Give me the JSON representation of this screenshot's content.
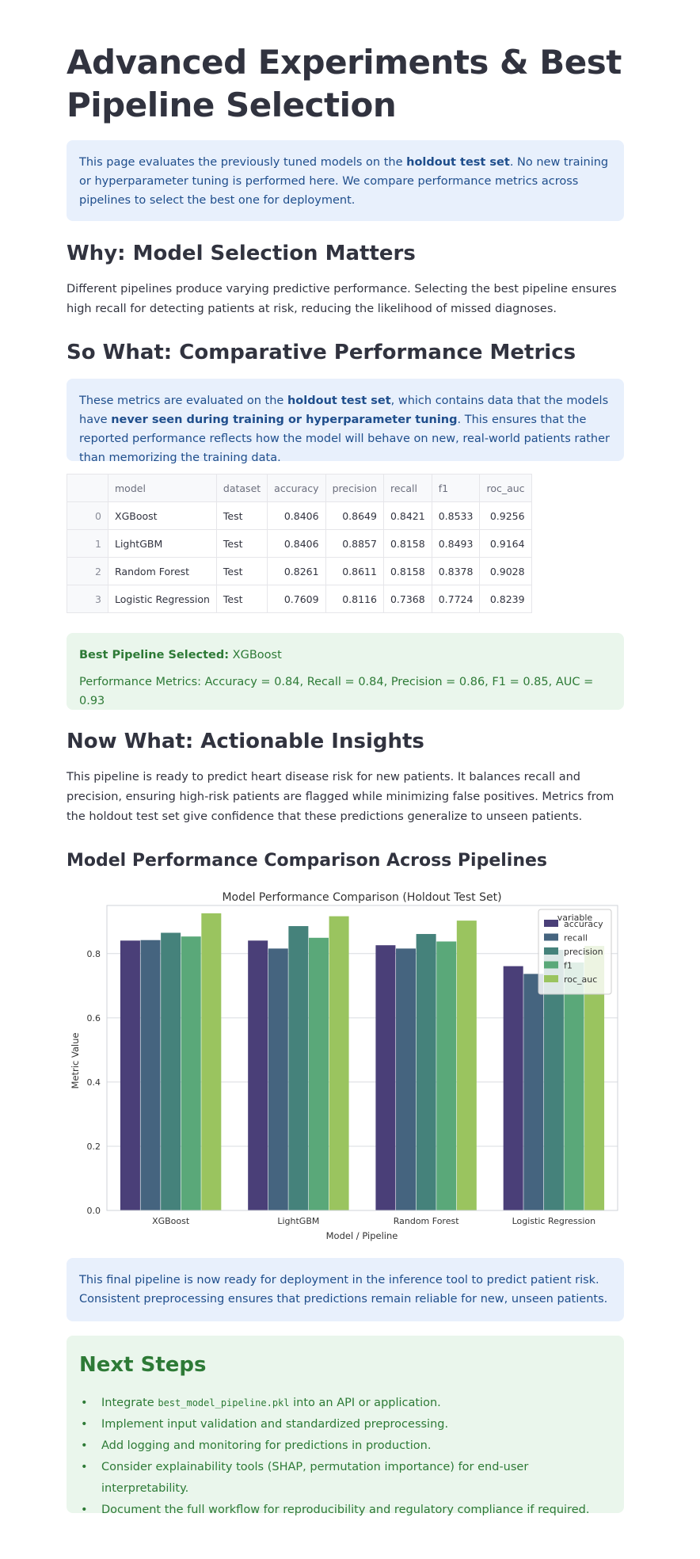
{
  "page": {
    "title": "Advanced Experiments & Best Pipeline Selection"
  },
  "intro": {
    "pre": "This page evaluates the previously tuned models on the ",
    "bold": "holdout test set",
    "post": ". No new training or hyperparameter tuning is performed here. We compare performance metrics across pipelines to select the best one for deployment."
  },
  "why": {
    "heading": "Why: Model Selection Matters",
    "text": "Different pipelines produce varying predictive performance. Selecting the best pipeline ensures high recall for detecting patients at risk, reducing the likelihood of missed diagnoses."
  },
  "so_what": {
    "heading": "So What: Comparative Performance Metrics",
    "p1": "These metrics are evaluated on the ",
    "b1": "holdout test set",
    "p2": ", which contains data that the models have ",
    "b2": "never seen during training or hyperparameter tuning",
    "p3": ". This ensures that the reported performance reflects how the model will behave on new, real-world patients rather than memorizing the training data."
  },
  "table": {
    "columns": [
      "",
      "model",
      "dataset",
      "accuracy",
      "precision",
      "recall",
      "f1",
      "roc_auc"
    ],
    "rows": [
      [
        "0",
        "XGBoost",
        "Test",
        "0.8406",
        "0.8649",
        "0.8421",
        "0.8533",
        "0.9256"
      ],
      [
        "1",
        "LightGBM",
        "Test",
        "0.8406",
        "0.8857",
        "0.8158",
        "0.8493",
        "0.9164"
      ],
      [
        "2",
        "Random Forest",
        "Test",
        "0.8261",
        "0.8611",
        "0.8158",
        "0.8378",
        "0.9028"
      ],
      [
        "3",
        "Logistic Regression",
        "Test",
        "0.7609",
        "0.8116",
        "0.7368",
        "0.7724",
        "0.8239"
      ]
    ]
  },
  "best": {
    "label": "Best Pipeline Selected:",
    "model": " XGBoost",
    "metrics": "Performance Metrics: Accuracy = 0.84, Recall = 0.84, Precision = 0.86, F1 = 0.85, AUC = 0.93"
  },
  "now_what": {
    "heading": "Now What: Actionable Insights",
    "text": "This pipeline is ready to predict heart disease risk for new patients. It balances recall and precision, ensuring high-risk patients are flagged while minimizing false positives. Metrics from the holdout test set give confidence that these predictions generalize to unseen patients."
  },
  "comparison": {
    "heading": "Model Performance Comparison Across Pipelines"
  },
  "chart_data": {
    "type": "bar",
    "title": "Model Performance Comparison (Holdout Test Set)",
    "xlabel": "Model / Pipeline",
    "ylabel": "Metric Value",
    "categories": [
      "XGBoost",
      "LightGBM",
      "Random Forest",
      "Logistic Regression"
    ],
    "ylim": [
      0,
      0.95
    ],
    "yticks": [
      "0.0",
      "0.2",
      "0.4",
      "0.6",
      "0.8"
    ],
    "grid": true,
    "legend_title": "variable",
    "legend_position": "top-right",
    "series": [
      {
        "name": "accuracy",
        "color": "#4a3f78",
        "values": [
          0.8406,
          0.8406,
          0.8261,
          0.7609
        ]
      },
      {
        "name": "recall",
        "color": "#45647f",
        "values": [
          0.8421,
          0.8158,
          0.8158,
          0.7368
        ]
      },
      {
        "name": "precision",
        "color": "#45827b",
        "values": [
          0.8649,
          0.8857,
          0.8611,
          0.8116
        ]
      },
      {
        "name": "f1",
        "color": "#5aa879",
        "values": [
          0.8533,
          0.8493,
          0.8378,
          0.7724
        ]
      },
      {
        "name": "roc_auc",
        "color": "#9ac45f",
        "values": [
          0.9256,
          0.9164,
          0.9028,
          0.8239
        ]
      }
    ]
  },
  "deploy_note": {
    "text": "This final pipeline is now ready for deployment in the inference tool to predict patient risk. Consistent preprocessing ensures that predictions remain reliable for new, unseen patients."
  },
  "next_steps": {
    "heading": "Next Steps",
    "item1_pre": "Integrate ",
    "item1_code": "best_model_pipeline.pkl",
    "item1_post": " into an API or application.",
    "item2": "Implement input validation and standardized preprocessing.",
    "item3": "Add logging and monitoring for predictions in production.",
    "item4": "Consider explainability tools (SHAP, permutation importance) for end-user interpretability.",
    "item5": "Document the full workflow for reproducibility and regulatory compliance if required."
  },
  "colors": {
    "info_bg": "#e8f0fc",
    "info_text": "#1f4e8c",
    "success_bg": "#eaf6ec",
    "success_text": "#2d7a36"
  }
}
